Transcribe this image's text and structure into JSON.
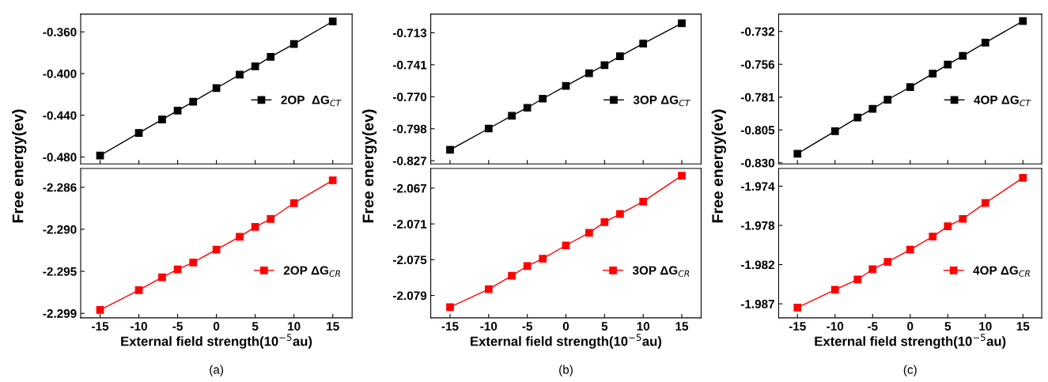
{
  "chart_data": [
    {
      "type": "line",
      "ylabel": "Free energy(ev)",
      "x": [
        -15,
        -10,
        -7,
        -5,
        -3,
        0,
        3,
        5,
        7,
        10,
        15
      ],
      "xlim": [
        -17.5,
        17.5
      ],
      "xticks": [
        -15,
        -10,
        -5,
        0,
        5,
        10,
        15
      ],
      "ylim": [
        -0.4866,
        -0.343
      ],
      "yticks": [
        {
          "value": -0.36,
          "label": "-0.360"
        },
        {
          "value": -0.4,
          "label": "-0.400"
        },
        {
          "value": -0.44,
          "label": "-0.440"
        },
        {
          "value": -0.48,
          "label": "-0.480"
        }
      ],
      "tick_labels": "y",
      "marker": "square",
      "line_style": "solid",
      "grid": false,
      "legend": "center right",
      "series": [
        {
          "name": "2OP  ΔG$_{CT}$",
          "color": "#000000",
          "values": [
            -0.4785,
            -0.457,
            -0.444,
            -0.4355,
            -0.427,
            -0.414,
            -0.401,
            -0.393,
            -0.384,
            -0.3717,
            -0.35
          ]
        }
      ]
    },
    {
      "type": "line",
      "xlabel": "External field strength(10$^{−5}$au)",
      "annotations": [
        "(a)"
      ],
      "x": [
        -15,
        -10,
        -7,
        -5,
        -3,
        0,
        3,
        5,
        7,
        10,
        15
      ],
      "xlim": [
        -17.5,
        17.5
      ],
      "xticks": [
        -15,
        -10,
        -5,
        0,
        5,
        10,
        15
      ],
      "ylim": [
        -2.2992,
        -2.2841
      ],
      "yticks": [
        {
          "value": -2.286,
          "label": "-2.286"
        },
        {
          "value": -2.29025,
          "label": "-2.290"
        },
        {
          "value": -2.2945,
          "label": "-2.295"
        },
        {
          "value": -2.29875,
          "label": "-2.299"
        }
      ],
      "marker": "square",
      "line_style": "solid",
      "grid": false,
      "legend": "lower right",
      "series": [
        {
          "name": "2OP ΔG$_{CR}$",
          "color": "#ff0000",
          "values": [
            -2.2984,
            -2.2964,
            -2.2951,
            -2.2943,
            -2.2936,
            -2.2923,
            -2.291,
            -2.29,
            -2.2892,
            -2.2876,
            -2.2853
          ]
        }
      ]
    },
    {
      "type": "line",
      "ylabel": "Free energy(ev)",
      "x": [
        -15,
        -10,
        -7,
        -5,
        -3,
        0,
        3,
        5,
        7,
        10,
        15
      ],
      "xlim": [
        -17.5,
        17.5
      ],
      "xticks": [
        -15,
        -10,
        -5,
        0,
        5,
        10,
        15
      ],
      "ylim": [
        -0.8298,
        -0.6964
      ],
      "yticks": [
        {
          "value": -0.713,
          "label": "-0.713"
        },
        {
          "value": -0.7415,
          "label": "-0.741"
        },
        {
          "value": -0.77,
          "label": "-0.770"
        },
        {
          "value": -0.7985,
          "label": "-0.798"
        },
        {
          "value": -0.827,
          "label": "-0.827"
        }
      ],
      "tick_labels": "y",
      "marker": "square",
      "line_style": "solid",
      "grid": false,
      "legend": "center right",
      "series": [
        {
          "name": "3OP ΔG$_{CT}$",
          "color": "#000000",
          "values": [
            -0.8173,
            -0.7983,
            -0.7869,
            -0.7798,
            -0.7717,
            -0.7603,
            -0.7491,
            -0.7418,
            -0.7339,
            -0.7227,
            -0.7045
          ]
        }
      ]
    },
    {
      "type": "line",
      "xlabel": "External field strength(10$^{−5}$au)",
      "annotations": [
        "(b)"
      ],
      "x": [
        -15,
        -10,
        -7,
        -5,
        -3,
        0,
        3,
        5,
        7,
        10,
        15
      ],
      "xlim": [
        -17.5,
        17.5
      ],
      "xticks": [
        -15,
        -10,
        -5,
        0,
        5,
        10,
        15
      ],
      "ylim": [
        -2.0815,
        -2.0648
      ],
      "yticks": [
        {
          "value": -2.067,
          "label": "-2.067"
        },
        {
          "value": -2.071,
          "label": "-2.071"
        },
        {
          "value": -2.075,
          "label": "-2.075"
        },
        {
          "value": -2.079,
          "label": "-2.079"
        }
      ],
      "marker": "square",
      "line_style": "solid",
      "grid": false,
      "legend": "lower right",
      "series": [
        {
          "name": "3OP ΔG$_{CR}$",
          "color": "#ff0000",
          "values": [
            -2.0803,
            -2.0783,
            -2.0768,
            -2.0757,
            -2.0749,
            -2.0734,
            -2.072,
            -2.0708,
            -2.0699,
            -2.0685,
            -2.0656
          ]
        }
      ]
    },
    {
      "type": "line",
      "ylabel": "Free energy(ev)",
      "x": [
        -15,
        -10,
        -7,
        -5,
        -3,
        0,
        3,
        5,
        7,
        10,
        15
      ],
      "xlim": [
        -17.5,
        17.5
      ],
      "xticks": [
        -15,
        -10,
        -5,
        0,
        5,
        10,
        15
      ],
      "ylim": [
        -0.8308,
        -0.7191
      ],
      "yticks": [
        {
          "value": -0.732,
          "label": "-0.732"
        },
        {
          "value": -0.7565,
          "label": "-0.756"
        },
        {
          "value": -0.781,
          "label": "-0.781"
        },
        {
          "value": -0.8055,
          "label": "-0.805"
        },
        {
          "value": -0.83,
          "label": "-0.830"
        }
      ],
      "tick_labels": "y",
      "marker": "square",
      "line_style": "solid",
      "grid": false,
      "legend": "center right",
      "series": [
        {
          "name": "4OP ΔG$_{CT}$",
          "color": "#000000",
          "values": [
            -0.8232,
            -0.8064,
            -0.7962,
            -0.7898,
            -0.7829,
            -0.7735,
            -0.7635,
            -0.7567,
            -0.7502,
            -0.7403,
            -0.7243
          ]
        }
      ]
    },
    {
      "type": "line",
      "xlabel": "External field strength(10$^{−5}$au)",
      "annotations": [
        "(c)"
      ],
      "x": [
        -15,
        -10,
        -7,
        -5,
        -3,
        0,
        3,
        5,
        7,
        10,
        15
      ],
      "xlim": [
        -17.5,
        17.5
      ],
      "xticks": [
        -15,
        -10,
        -5,
        0,
        5,
        10,
        15
      ],
      "ylim": [
        -1.9881,
        -1.9721
      ],
      "yticks": [
        {
          "value": -1.974,
          "label": "-1.974"
        },
        {
          "value": -1.9782,
          "label": "-1.978"
        },
        {
          "value": -1.9824,
          "label": "-1.982"
        },
        {
          "value": -1.9866,
          "label": "-1.987"
        }
      ],
      "marker": "square",
      "line_style": "solid",
      "grid": false,
      "legend": "lower right",
      "series": [
        {
          "name": "4OP ΔG$_{CR}$",
          "color": "#ff0000",
          "values": [
            -1.987,
            -1.9851,
            -1.984,
            -1.9829,
            -1.9821,
            -1.9808,
            -1.9794,
            -1.9783,
            -1.9775,
            -1.9758,
            -1.9731
          ]
        }
      ]
    }
  ]
}
